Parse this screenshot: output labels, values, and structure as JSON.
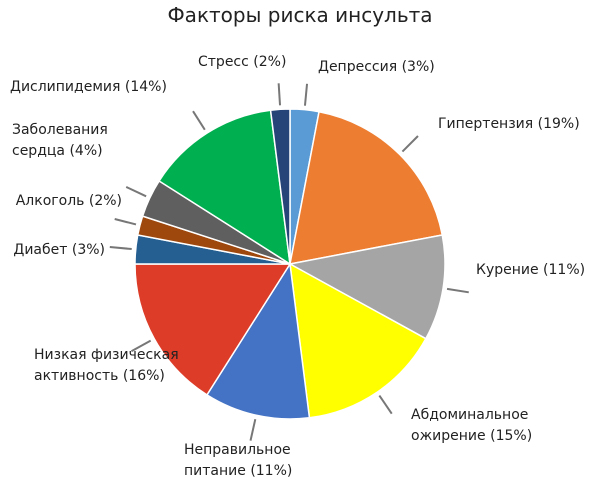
{
  "chart_data": {
    "type": "pie",
    "title": "Факторы риска инсульта",
    "categories": [
      "Депрессия",
      "Гипертензия",
      "Курение",
      "Абдоминальное ожирение",
      "Неправильное питание",
      "Низкая физическая активность",
      "Диабет",
      "Алкоголь",
      "Заболевания сердца",
      "Дислипидемия",
      "Стресс"
    ],
    "values": [
      3,
      19,
      11,
      15,
      11,
      16,
      3,
      2,
      4,
      14,
      2
    ],
    "value_labels": [
      "(3%)",
      "(19%)",
      "(11%)",
      "(15%)",
      "(11%)",
      "(16%)",
      "(3%)",
      "(2%)",
      "(4%)",
      "(14%)",
      "(2%)"
    ],
    "colors": [
      "#5b9bd5",
      "#ed7d31",
      "#a5a5a5",
      "#ffff00",
      "#4472c4",
      "#dc3c28",
      "#255e91",
      "#9e480e",
      "#5f5f5f",
      "#00b050",
      "#264478"
    ]
  }
}
